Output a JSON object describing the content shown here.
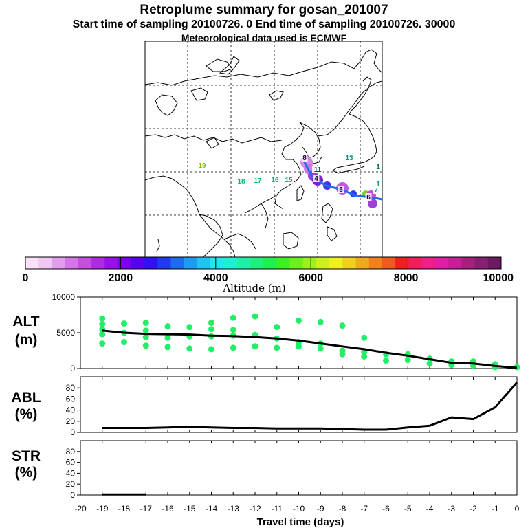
{
  "title": "Retroplume summary for gosan_201007",
  "subtitle": "Start time of sampling 20100726.    0     End time of sampling 20100726. 30000",
  "met_line": "Meteorological data used is ECMWF",
  "colorbar": {
    "label": "Altitude (m)",
    "ticks": [
      "0",
      "2000",
      "4000",
      "6000",
      "8000",
      "10000"
    ],
    "colors": [
      "#f9e0f9",
      "#f0c6f5",
      "#e49cee",
      "#d775e8",
      "#c74fe0",
      "#b02be0",
      "#9810e8",
      "#7b00ee",
      "#5800f0",
      "#3310f0",
      "#1f3af0",
      "#1d6cf0",
      "#1e9af0",
      "#1fc4f0",
      "#1fe6f0",
      "#1ef0d6",
      "#1ef0a8",
      "#1ef07c",
      "#1ef050",
      "#3cf022",
      "#6bf01e",
      "#9cf01e",
      "#cbf01e",
      "#f0f01e",
      "#f0d01e",
      "#f0aa1e",
      "#f0821e",
      "#f05a1e",
      "#f0201e",
      "#f01e5a",
      "#f01e8a",
      "#e01ea8",
      "#c81e9c",
      "#a8207f",
      "#8a1e72",
      "#6c1a64"
    ]
  },
  "map_labels": [
    {
      "text": "19",
      "color": "#7fbf00"
    },
    {
      "text": "18",
      "color": "#00b870"
    },
    {
      "text": "17",
      "color": "#00b870"
    },
    {
      "text": "16",
      "color": "#00b870"
    },
    {
      "text": "15",
      "color": "#00b070"
    },
    {
      "text": "13",
      "color": "#009870"
    },
    {
      "text": "11",
      "color": "#005060"
    },
    {
      "text": "1",
      "color": "#007060"
    },
    {
      "text": "1",
      "color": "#00a060"
    },
    {
      "text": "7",
      "color": "#00a060"
    },
    {
      "text": "4",
      "color": "#200040"
    },
    {
      "text": "5",
      "color": "#200040"
    },
    {
      "text": "6",
      "color": "#200040"
    },
    {
      "text": "8",
      "color": "#200040"
    }
  ],
  "panels": {
    "alt": {
      "label_line1": "ALT",
      "label_line2": "(m)"
    },
    "abl": {
      "label_line1": "ABL",
      "label_line2": "(%)"
    },
    "str": {
      "label_line1": "STR",
      "label_line2": "(%)"
    }
  },
  "chart_data": [
    {
      "type": "line",
      "panel": "ALT",
      "ylabel": "ALT (m)",
      "ylim": [
        0,
        10000
      ],
      "yticks": [
        "0",
        "5000",
        "10000"
      ],
      "x": [
        -19,
        -18,
        -17,
        -16,
        -15,
        -14,
        -13,
        -12,
        -11,
        -10,
        -9,
        -8,
        -7,
        -6,
        -5,
        -4,
        -3,
        -2,
        -1,
        0
      ],
      "series": [
        {
          "name": "mean altitude",
          "values": [
            5300,
            5000,
            4850,
            4800,
            4750,
            4600,
            4550,
            4400,
            4200,
            3900,
            3500,
            3100,
            2700,
            2200,
            1800,
            1300,
            800,
            700,
            350,
            100
          ]
        }
      ],
      "scatter": [
        {
          "x": -19,
          "y": 7000
        },
        {
          "x": -19,
          "y": 6200
        },
        {
          "x": -19,
          "y": 5500
        },
        {
          "x": -19,
          "y": 4800
        },
        {
          "x": -19,
          "y": 3500
        },
        {
          "x": -18,
          "y": 6300
        },
        {
          "x": -18,
          "y": 5000
        },
        {
          "x": -18,
          "y": 3700
        },
        {
          "x": -17,
          "y": 6400
        },
        {
          "x": -17,
          "y": 5300
        },
        {
          "x": -17,
          "y": 4400
        },
        {
          "x": -17,
          "y": 3200
        },
        {
          "x": -16,
          "y": 5900
        },
        {
          "x": -16,
          "y": 4300
        },
        {
          "x": -16,
          "y": 3000
        },
        {
          "x": -15,
          "y": 5800
        },
        {
          "x": -15,
          "y": 4500
        },
        {
          "x": -15,
          "y": 2800
        },
        {
          "x": -14,
          "y": 6400
        },
        {
          "x": -14,
          "y": 5500
        },
        {
          "x": -14,
          "y": 4500
        },
        {
          "x": -14,
          "y": 2700
        },
        {
          "x": -13,
          "y": 7100
        },
        {
          "x": -13,
          "y": 5400
        },
        {
          "x": -13,
          "y": 4600
        },
        {
          "x": -13,
          "y": 2900
        },
        {
          "x": -12,
          "y": 7300
        },
        {
          "x": -12,
          "y": 4700
        },
        {
          "x": -12,
          "y": 3100
        },
        {
          "x": -11,
          "y": 5800
        },
        {
          "x": -11,
          "y": 4200
        },
        {
          "x": -11,
          "y": 2900
        },
        {
          "x": -10,
          "y": 6700
        },
        {
          "x": -10,
          "y": 3700
        },
        {
          "x": -10,
          "y": 3100
        },
        {
          "x": -9,
          "y": 6500
        },
        {
          "x": -9,
          "y": 3500
        },
        {
          "x": -9,
          "y": 2800
        },
        {
          "x": -8,
          "y": 6000
        },
        {
          "x": -8,
          "y": 2500
        },
        {
          "x": -8,
          "y": 2000
        },
        {
          "x": -7,
          "y": 4300
        },
        {
          "x": -7,
          "y": 2300
        },
        {
          "x": -7,
          "y": 1700
        },
        {
          "x": -6,
          "y": 2000
        },
        {
          "x": -6,
          "y": 1100
        },
        {
          "x": -5,
          "y": 2000
        },
        {
          "x": -5,
          "y": 1200
        },
        {
          "x": -4,
          "y": 1400
        },
        {
          "x": -4,
          "y": 700
        },
        {
          "x": -3,
          "y": 1000
        },
        {
          "x": -3,
          "y": 500
        },
        {
          "x": -2,
          "y": 1000
        },
        {
          "x": -2,
          "y": 400
        },
        {
          "x": -1,
          "y": 600
        },
        {
          "x": -1,
          "y": 200
        },
        {
          "x": 0,
          "y": 200
        }
      ]
    },
    {
      "type": "line",
      "panel": "ABL",
      "ylabel": "ABL (%)",
      "ylim": [
        0,
        100
      ],
      "yticks": [
        "0",
        "20",
        "40",
        "60",
        "80"
      ],
      "x": [
        -19,
        -18,
        -17,
        -16,
        -15,
        -14,
        -13,
        -12,
        -11,
        -10,
        -9,
        -8,
        -7,
        -6,
        -5,
        -4,
        -3,
        -2,
        -1,
        0
      ],
      "series": [
        {
          "name": "ABL fraction",
          "values": [
            8,
            8,
            8,
            9,
            10,
            9,
            8,
            8,
            7,
            7,
            7,
            6,
            5,
            5,
            9,
            12,
            27,
            24,
            45,
            90
          ]
        }
      ]
    },
    {
      "type": "line",
      "panel": "STR",
      "ylabel": "STR (%)",
      "ylim": [
        0,
        100
      ],
      "yticks": [
        "0",
        "20",
        "40",
        "60",
        "80"
      ],
      "x": [
        -19,
        -18,
        -17
      ],
      "series": [
        {
          "name": "stratospheric fraction",
          "values": [
            1,
            1,
            1
          ]
        }
      ]
    }
  ],
  "xaxis": {
    "label": "Travel time (days)",
    "range": [
      -20,
      0
    ],
    "ticks": [
      "-20",
      "-19",
      "-18",
      "-17",
      "-16",
      "-15",
      "-14",
      "-13",
      "-12",
      "-11",
      "-10",
      "-9",
      "-8",
      "-7",
      "-6",
      "-5",
      "-4",
      "-3",
      "-2",
      "-1",
      "0"
    ]
  }
}
